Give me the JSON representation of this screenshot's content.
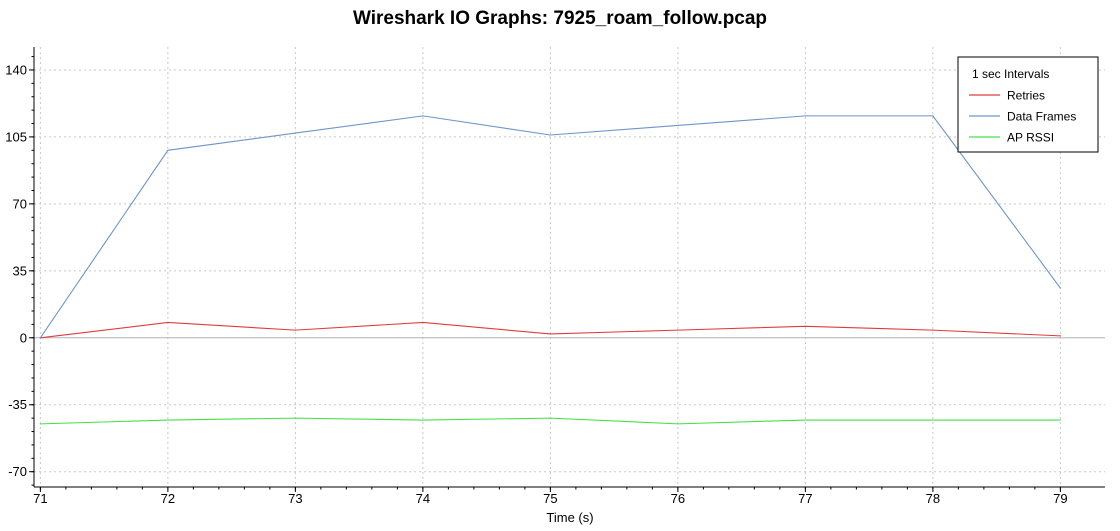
{
  "chart_data": {
    "type": "line",
    "title": "Wireshark IO Graphs: 7925_roam_follow.pcap",
    "xlabel": "Time (s)",
    "ylabel": "",
    "x": [
      71,
      72,
      73,
      74,
      75,
      76,
      77,
      78,
      79
    ],
    "xlim": [
      70.95,
      79.35
    ],
    "ylim": [
      -78,
      152
    ],
    "yticks": [
      -70,
      -35,
      0,
      35,
      70,
      105,
      140
    ],
    "xticks": [
      71,
      72,
      73,
      74,
      75,
      76,
      77,
      78,
      79
    ],
    "grid": true,
    "legend": {
      "title": "1 sec Intervals",
      "placement": "top-right"
    },
    "series": [
      {
        "name": "Retries",
        "color": "#e03c3c",
        "values": [
          0,
          8,
          4,
          8,
          2,
          4,
          6,
          4,
          1
        ]
      },
      {
        "name": "Data Frames",
        "color": "#6e95c9",
        "values": [
          0,
          98,
          107,
          116,
          106,
          111,
          116,
          116,
          26
        ]
      },
      {
        "name": "AP RSSI",
        "color": "#47e047",
        "values": [
          -45,
          -43,
          -42,
          -43,
          -42,
          -45,
          -43,
          -43,
          -43
        ]
      }
    ]
  }
}
